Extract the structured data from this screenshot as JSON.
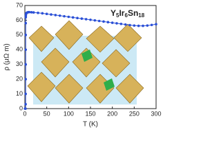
{
  "chart_data": {
    "type": "line",
    "annotation": [
      "Y",
      "5",
      "Ir",
      "6",
      "Sn",
      "18"
    ],
    "x_label": "T (K)",
    "y_label": "ρ (μΩ m)",
    "xlim": [
      0,
      300
    ],
    "xticks": [
      0,
      50,
      100,
      150,
      200,
      250,
      300
    ],
    "ylim": [
      0,
      70
    ],
    "yticks": [
      0,
      10,
      20,
      30,
      40,
      50,
      60,
      70
    ],
    "x": [
      0.3,
      0.6,
      1,
      1.3,
      1.6,
      1.8,
      1.9,
      2,
      2,
      2,
      2,
      2,
      2.1,
      2.2,
      2.5,
      3,
      4,
      6,
      8,
      10,
      15,
      20,
      30,
      40,
      50,
      60,
      70,
      80,
      90,
      100,
      110,
      120,
      130,
      140,
      150,
      160,
      170,
      180,
      190,
      200,
      210,
      220,
      230,
      240,
      250,
      260,
      270,
      280,
      290,
      300
    ],
    "series": [
      {
        "color": "#2a4fd6",
        "values": [
          0,
          0,
          0,
          0,
          0,
          3,
          10,
          20,
          30,
          40,
          50,
          58,
          62,
          63,
          64,
          64.5,
          65,
          65.3,
          65.5,
          65.5,
          65.4,
          65.3,
          65,
          64.7,
          64.3,
          63.9,
          63.5,
          63.1,
          62.7,
          62.3,
          61.9,
          61.5,
          61.1,
          60.7,
          60.3,
          59.9,
          59.5,
          59.1,
          58.7,
          58.3,
          57.9,
          57.5,
          57.1,
          56.7,
          56.4,
          56.2,
          56.2,
          56.4,
          56.8,
          57.3
        ]
      }
    ]
  }
}
